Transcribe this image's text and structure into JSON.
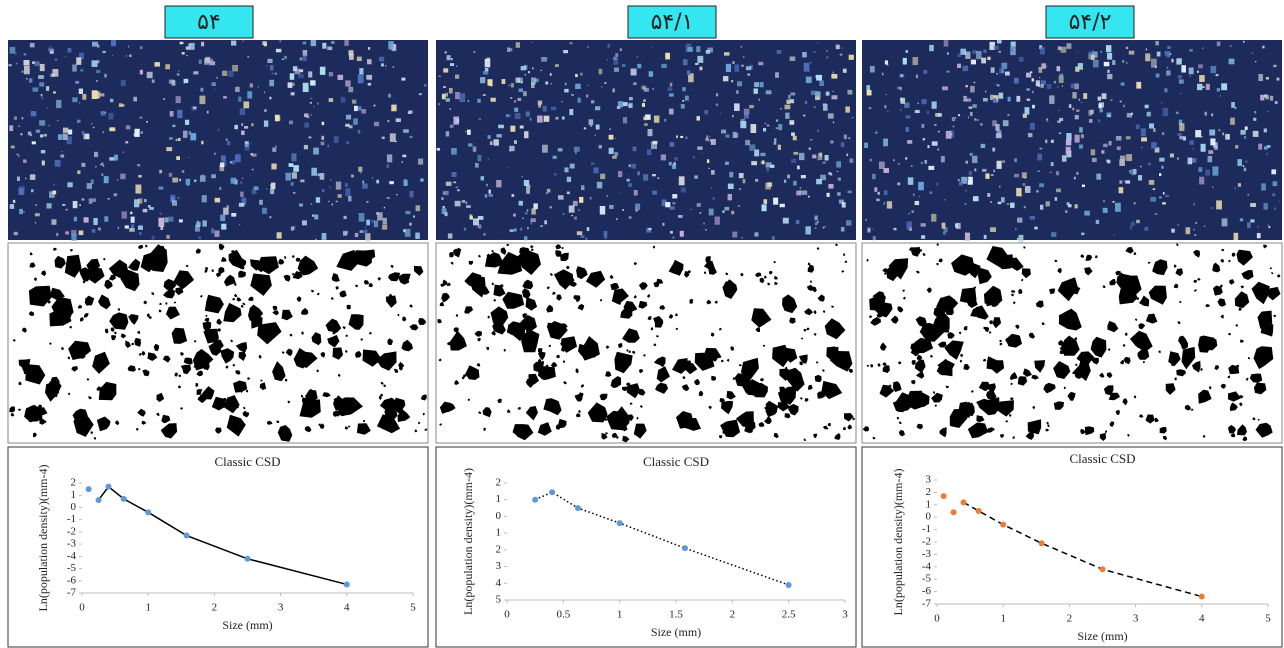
{
  "panel_labels": [
    "۵۴",
    "۵۴/۱",
    "۵۴/۲"
  ],
  "chart_data": [
    {
      "type": "scatter",
      "title": "Classic CSD",
      "x_label": "Size (mm)",
      "y_label": "Ln(population density)(mm-4)",
      "xlim": [
        0,
        5
      ],
      "ylim": [
        -7,
        2
      ],
      "xticks": [
        0,
        1,
        2,
        3,
        4,
        5
      ],
      "yticks": [
        2,
        1,
        0,
        -1,
        -2,
        -3,
        -4,
        -5,
        -6,
        -7
      ],
      "series": [
        {
          "mode": "markers",
          "color": "#5b9bd5",
          "x": [
            0.1,
            0.25,
            0.4,
            0.63,
            1.0,
            1.58,
            2.5,
            4.0
          ],
          "values": [
            1.5,
            0.6,
            1.7,
            0.7,
            -0.4,
            -2.3,
            -4.2,
            -6.3
          ]
        },
        {
          "mode": "line",
          "line_style": "solid",
          "color": "#000000",
          "x": [
            0.25,
            0.4,
            0.63,
            1.0,
            1.58,
            2.5,
            4.0
          ],
          "values": [
            0.6,
            1.7,
            0.7,
            -0.4,
            -2.3,
            -4.2,
            -6.3
          ]
        }
      ]
    },
    {
      "type": "scatter",
      "title": "Classic CSD",
      "x_label": "Size (mm)",
      "y_label": "Ln(population density)(mm-4)",
      "xlim": [
        0,
        3
      ],
      "ylim": [
        -5,
        2
      ],
      "xticks": [
        0,
        0.5,
        1,
        1.5,
        2,
        2.5,
        3
      ],
      "yticks": [
        2,
        1,
        0,
        {
          "value": -1,
          "label": "1"
        },
        {
          "value": -2,
          "label": "2"
        },
        {
          "value": -3,
          "label": "3"
        },
        {
          "value": -4,
          "label": "4"
        },
        {
          "value": -5,
          "label": "5"
        }
      ],
      "series": [
        {
          "mode": "markers",
          "color": "#5b9bd5",
          "x": [
            0.25,
            0.4,
            0.63,
            1.0,
            1.58,
            2.5
          ],
          "values": [
            1.0,
            1.45,
            0.5,
            -0.4,
            -1.9,
            -4.1
          ]
        },
        {
          "mode": "line",
          "line_style": "dotted",
          "color": "#000000",
          "x": [
            0.25,
            0.4,
            0.63,
            1.0,
            1.58,
            2.5
          ],
          "values": [
            1.0,
            1.45,
            0.5,
            -0.4,
            -1.9,
            -4.1
          ]
        }
      ]
    },
    {
      "type": "scatter",
      "title": "Classic CSD",
      "x_label": "Size (mm)",
      "y_label": "Ln(population density)(mm-4)",
      "xlim": [
        0,
        5
      ],
      "ylim": [
        -7,
        3
      ],
      "xticks": [
        0,
        1,
        2,
        3,
        4,
        5
      ],
      "yticks": [
        3,
        2,
        1,
        0,
        -1,
        -2,
        -3,
        -4,
        -5,
        -6,
        -7
      ],
      "series": [
        {
          "mode": "markers",
          "color": "#ed7d31",
          "x": [
            0.1,
            0.25,
            0.4,
            0.63,
            1.0,
            1.58,
            2.5,
            4.0
          ],
          "values": [
            1.7,
            0.4,
            1.2,
            0.5,
            -0.6,
            -2.1,
            -4.2,
            -6.4
          ]
        },
        {
          "mode": "line",
          "line_style": "dashed",
          "color": "#000000",
          "x": [
            0.4,
            0.63,
            1.0,
            1.58,
            2.5,
            4.0
          ],
          "values": [
            1.2,
            0.5,
            -0.6,
            -2.1,
            -4.2,
            -6.4
          ]
        }
      ]
    }
  ]
}
